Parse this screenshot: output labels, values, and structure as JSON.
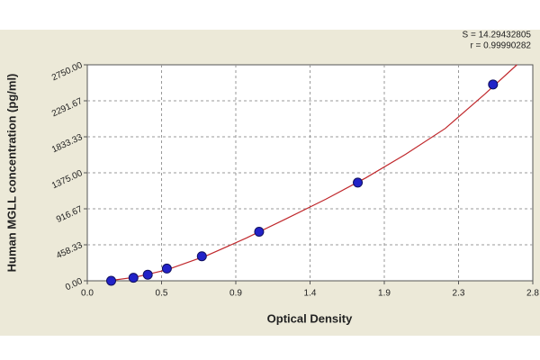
{
  "chart_data": {
    "type": "scatter",
    "stats": [
      "S = 14.29432805",
      "r = 0.99990282"
    ],
    "xlabel": "Optical Density",
    "ylabel": "Human MGLL concentration (pg/ml)",
    "xlim": [
      0,
      2.8
    ],
    "xticks": [
      {
        "value": 0,
        "label": "0.0"
      },
      {
        "value": 0.4667,
        "label": "0.5"
      },
      {
        "value": 0.9333,
        "label": "0.9"
      },
      1.4,
      {
        "value": 1.8667,
        "label": "1.9"
      },
      {
        "value": 2.3333,
        "label": "2.3"
      },
      2.8
    ],
    "ylim": [
      0,
      2750
    ],
    "yticks": [
      {
        "value": 0,
        "label": "0.00"
      },
      {
        "value": 458.33,
        "label": "458.33"
      },
      {
        "value": 916.67,
        "label": "916.67"
      },
      {
        "value": 1375,
        "label": "1375.00"
      },
      {
        "value": 1833.33,
        "label": "1833.33"
      },
      {
        "value": 2291.67,
        "label": "2291.67"
      },
      {
        "value": 2750,
        "label": "2750.00"
      }
    ],
    "grid": true,
    "series": [
      {
        "type": "line",
        "color": "#c0282c",
        "x": [
          0.15,
          0.3,
          0.5,
          0.75,
          1.0,
          1.25,
          1.5,
          1.75,
          2.0,
          2.25,
          2.5,
          2.7
        ],
        "values": [
          5,
          45,
          140,
          320,
          545,
          790,
          1040,
          1310,
          1610,
          1940,
          2380,
          2750
        ]
      },
      {
        "type": "scatter",
        "color": "#2222c8",
        "x": [
          0.15,
          0.29,
          0.38,
          0.5,
          0.72,
          1.08,
          1.7,
          2.55
        ],
        "values": [
          0,
          39,
          78,
          156,
          312.5,
          625,
          1250,
          2500
        ]
      }
    ]
  }
}
